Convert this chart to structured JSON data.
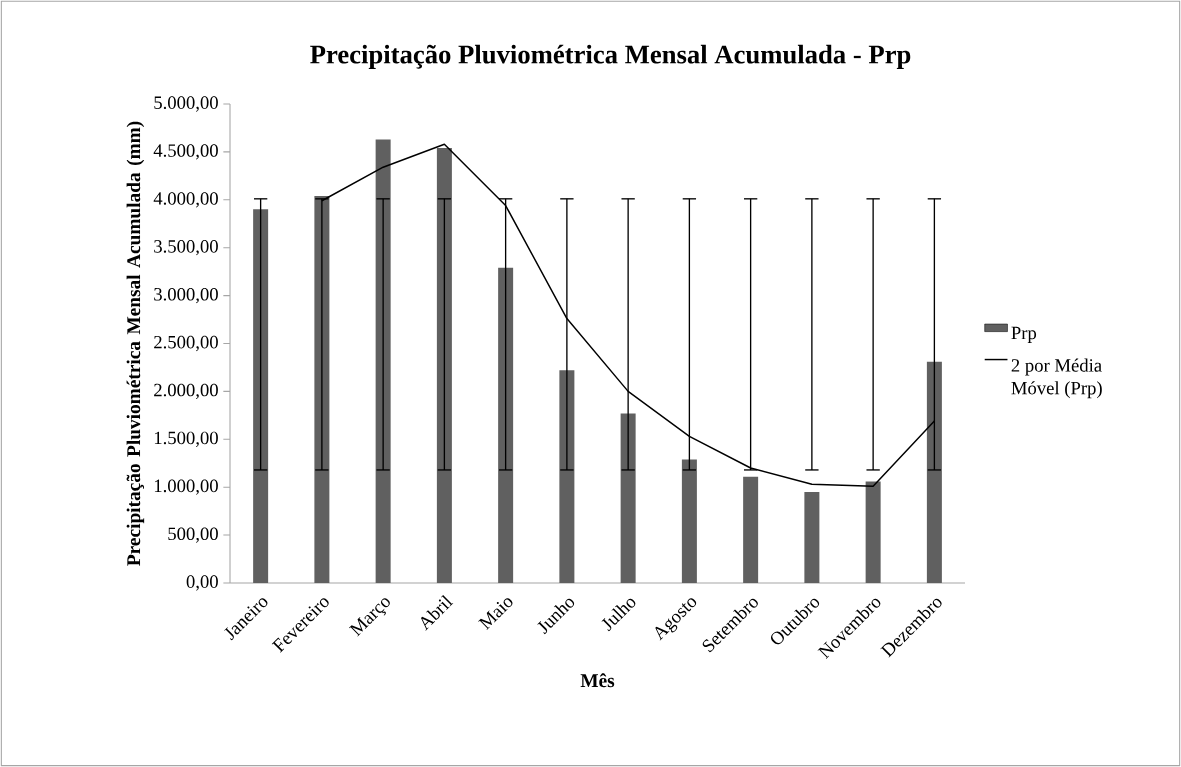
{
  "chart_data": {
    "type": "bar",
    "title": "Precipitação Pluviométrica Mensal Acumulada - Prp",
    "xlabel": "Mês",
    "ylabel": "Precipitação Pluviométrica Mensal Acumulada (mm)",
    "categories": [
      "Janeiro",
      "Fevereiro",
      "Março",
      "Abril",
      "Maio",
      "Junho",
      "Julho",
      "Agosto",
      "Setembro",
      "Outubro",
      "Novembro",
      "Dezembro"
    ],
    "series": [
      {
        "name": "Prp",
        "color": "#606060",
        "values": [
          3900,
          4040,
          4630,
          4540,
          3290,
          2220,
          1770,
          1290,
          1110,
          950,
          1060,
          2310
        ],
        "errors": [
          [
            1180,
            4010
          ],
          [
            1180,
            4010
          ],
          [
            1180,
            4010
          ],
          [
            1180,
            4010
          ],
          [
            1180,
            4010
          ],
          [
            1180,
            4010
          ],
          [
            1180,
            4010
          ],
          [
            1180,
            4010
          ],
          [
            1180,
            4010
          ],
          [
            1180,
            4010
          ],
          [
            1180,
            4010
          ],
          [
            1180,
            4010
          ]
        ]
      },
      {
        "name": "2 por Média Móvel (Prp)",
        "type": "line",
        "color": "#000000",
        "values": [
          null,
          3990,
          4340,
          4580,
          3940,
          2760,
          2000,
          1530,
          1200,
          1030,
          1010,
          1690
        ]
      }
    ],
    "ylim": [
      0,
      5000
    ],
    "yticks": [
      {
        "value": 0,
        "label": "0,00"
      },
      {
        "value": 500,
        "label": "500,00"
      },
      {
        "value": 1000,
        "label": "1.000,00"
      },
      {
        "value": 1500,
        "label": "1.500,00"
      },
      {
        "value": 2000,
        "label": "2.000,00"
      },
      {
        "value": 2500,
        "label": "2.500,00"
      },
      {
        "value": 3000,
        "label": "3.000,00"
      },
      {
        "value": 3500,
        "label": "3.500,00"
      },
      {
        "value": 4000,
        "label": "4.000,00"
      },
      {
        "value": 4500,
        "label": "4.500,00"
      },
      {
        "value": 5000,
        "label": "5.000,00"
      }
    ],
    "legend": "right"
  }
}
